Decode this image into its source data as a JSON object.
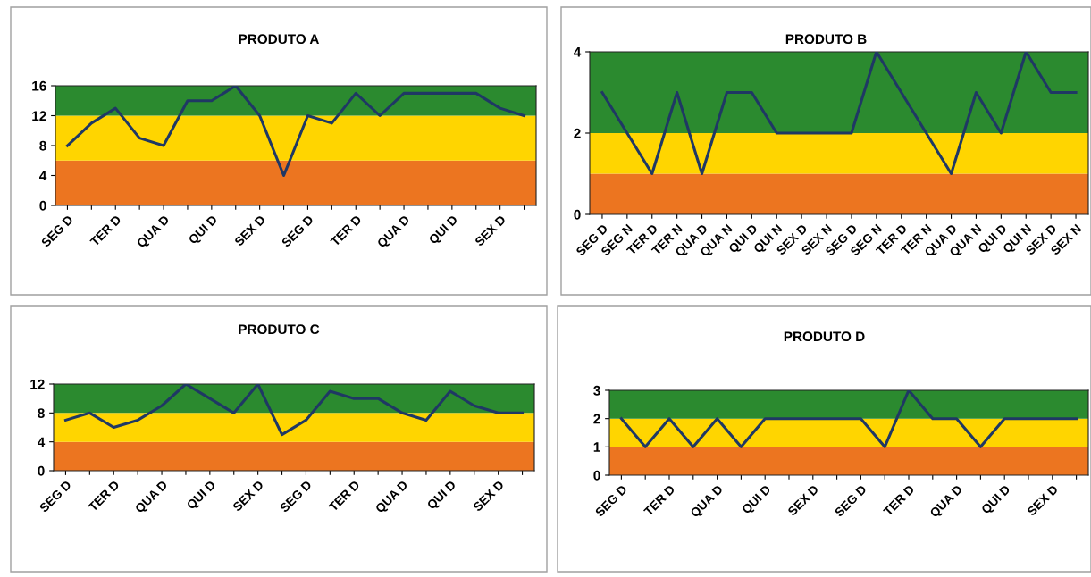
{
  "chart_data": [
    {
      "type": "line",
      "title": "PRODUTO A",
      "categories": [
        "SEG D",
        null,
        "TER D",
        null,
        "QUA D",
        null,
        "QUI D",
        null,
        "SEX D",
        null,
        "SEG D",
        null,
        "TER D",
        null,
        "QUA D",
        null,
        "QUI D",
        null,
        "SEX D",
        null
      ],
      "series": [
        {
          "color": "#1f3864",
          "values": [
            8,
            11,
            13,
            9,
            8,
            14,
            14,
            16,
            12,
            4,
            12,
            11,
            15,
            12,
            15,
            15,
            15,
            15,
            13,
            12
          ]
        }
      ],
      "ylim": [
        0,
        16
      ],
      "yticks": [
        0,
        4,
        8,
        12,
        16
      ],
      "bands": [
        {
          "axis": "y",
          "from": 0,
          "to": 6,
          "color": "#ec7520"
        },
        {
          "axis": "y",
          "from": 6,
          "to": 12,
          "color": "#ffd500"
        },
        {
          "axis": "y",
          "from": 12,
          "to": 16,
          "color": "#2b8a2f"
        }
      ]
    },
    {
      "type": "line",
      "title": "PRODUTO B",
      "categories": [
        "SEG D",
        "SEG N",
        "TER D",
        "TER N",
        "QUA D",
        "QUA N",
        "QUI D",
        "QUI N",
        "SEX D",
        "SEX N",
        "SEG D",
        "SEG N",
        "TER D",
        "TER N",
        "QUA D",
        "QUA N",
        "QUI D",
        "QUI N",
        "SEX D",
        "SEX N"
      ],
      "series": [
        {
          "color": "#1f3864",
          "values": [
            3,
            2,
            1,
            3,
            1,
            3,
            3,
            2,
            2,
            2,
            2,
            4,
            3,
            2,
            1,
            3,
            2,
            4,
            3,
            3
          ]
        }
      ],
      "ylim": [
        0,
        4
      ],
      "yticks": [
        0,
        2,
        4
      ],
      "bands": [
        {
          "axis": "y",
          "from": 0,
          "to": 1,
          "color": "#ec7520"
        },
        {
          "axis": "y",
          "from": 1,
          "to": 2,
          "color": "#ffd500"
        },
        {
          "axis": "y",
          "from": 2,
          "to": 4,
          "color": "#2b8a2f"
        }
      ]
    },
    {
      "type": "line",
      "title": "PRODUTO C",
      "categories": [
        "SEG D",
        null,
        "TER D",
        null,
        "QUA D",
        null,
        "QUI D",
        null,
        "SEX D",
        null,
        "SEG D",
        null,
        "TER D",
        null,
        "QUA D",
        null,
        "QUI D",
        null,
        "SEX D",
        null
      ],
      "series": [
        {
          "color": "#1f3864",
          "values": [
            7,
            8,
            6,
            7,
            9,
            12,
            10,
            8,
            12,
            5,
            7,
            11,
            10,
            10,
            8,
            7,
            11,
            9,
            8,
            8
          ]
        }
      ],
      "ylim": [
        0,
        12
      ],
      "yticks": [
        0,
        4,
        8,
        12
      ],
      "bands": [
        {
          "axis": "y",
          "from": 0,
          "to": 4,
          "color": "#ec7520"
        },
        {
          "axis": "y",
          "from": 4,
          "to": 8,
          "color": "#ffd500"
        },
        {
          "axis": "y",
          "from": 8,
          "to": 12,
          "color": "#2b8a2f"
        }
      ]
    },
    {
      "type": "line",
      "title": "PRODUTO D",
      "categories": [
        "SEG D",
        null,
        "TER D",
        null,
        "QUA D",
        null,
        "QUI D",
        null,
        "SEX D",
        null,
        "SEG D",
        null,
        "TER D",
        null,
        "QUA D",
        null,
        "QUI D",
        null,
        "SEX D",
        null
      ],
      "series": [
        {
          "color": "#1f3864",
          "values": [
            2,
            1,
            2,
            1,
            2,
            1,
            2,
            2,
            2,
            2,
            2,
            1,
            3,
            2,
            2,
            1,
            2,
            2,
            2,
            2
          ]
        }
      ],
      "ylim": [
        0,
        3
      ],
      "yticks": [
        0,
        1,
        2,
        3
      ],
      "bands": [
        {
          "axis": "y",
          "from": 0,
          "to": 1,
          "color": "#ec7520"
        },
        {
          "axis": "y",
          "from": 1,
          "to": 2,
          "color": "#ffd500"
        },
        {
          "axis": "y",
          "from": 2,
          "to": 3,
          "color": "#2b8a2f"
        }
      ]
    }
  ]
}
